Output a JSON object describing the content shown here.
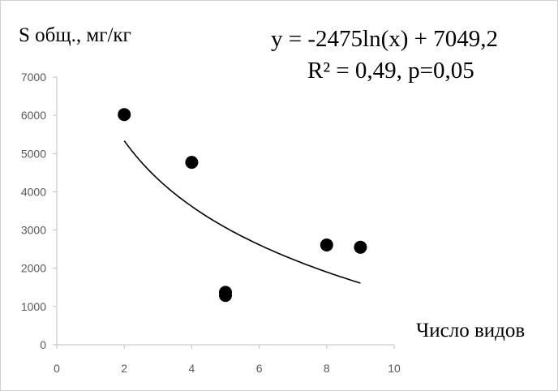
{
  "chart_data": {
    "type": "scatter",
    "ylabel": "S общ., мг/кг",
    "xlabel": "Число видов",
    "equation": "y = -2475ln(x) + 7049,2",
    "stats": "R² = 0,49, p=0,05",
    "xlim": [
      0,
      10
    ],
    "ylim": [
      0,
      7000
    ],
    "xticks": [
      0,
      2,
      4,
      6,
      8,
      10
    ],
    "yticks": [
      0,
      1000,
      2000,
      3000,
      4000,
      5000,
      6000,
      7000
    ],
    "points": [
      {
        "x": 2,
        "y": 6020
      },
      {
        "x": 4,
        "y": 4770
      },
      {
        "x": 5,
        "y": 1370
      },
      {
        "x": 5,
        "y": 1290
      },
      {
        "x": 8,
        "y": 2610
      },
      {
        "x": 9,
        "y": 2550
      }
    ],
    "trendline": {
      "type": "log",
      "a": -2475,
      "b": 7049.2,
      "x_from": 2,
      "x_to": 9
    },
    "grid": false,
    "colors": {
      "marker": "#000000",
      "trendline": "#000000",
      "axis": "#bfbfbf",
      "tick_text": "#595959"
    }
  }
}
